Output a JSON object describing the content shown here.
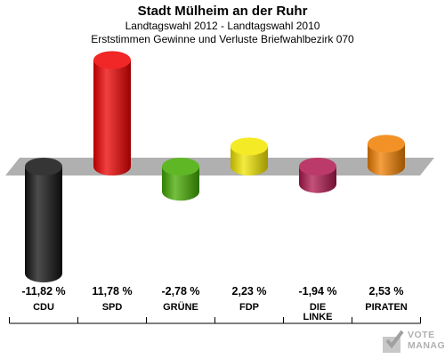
{
  "title": "Stadt Mülheim an der Ruhr",
  "subtitle1": "Landtagswahl 2012 - Landtagswahl 2010",
  "subtitle2": "Erststimmen Gewinne und Verluste Briefwahlbezirk 070",
  "logo": {
    "line1": "VOTE",
    "line2": "MANAGER",
    "icon": "ballot-box-icon"
  },
  "chart_data": {
    "type": "bar",
    "categories": [
      "CDU",
      "SPD",
      "GRÜNE",
      "FDP",
      "DIE LINKE",
      "PIRATEN"
    ],
    "category_lines": [
      [
        "CDU"
      ],
      [
        "SPD"
      ],
      [
        "GRÜNE"
      ],
      [
        "FDP"
      ],
      [
        "DIE",
        "LINKE"
      ],
      [
        "PIRATEN"
      ]
    ],
    "values": [
      -11.82,
      11.78,
      -2.78,
      2.23,
      -1.94,
      2.53
    ],
    "value_labels": [
      "-11,82 %",
      "11,78 %",
      "-2,78 %",
      "2,23 %",
      "-1,94 %",
      "2,53 %"
    ],
    "colors": [
      "#111111",
      "#ee0000",
      "#44aa00",
      "#f2e600",
      "#b0174e",
      "#f07f00"
    ],
    "baseline_color": "#b0b0b0",
    "title": "Stadt Mülheim an der Ruhr",
    "xlabel": "",
    "ylabel": "",
    "grid": false,
    "legend": "none"
  }
}
